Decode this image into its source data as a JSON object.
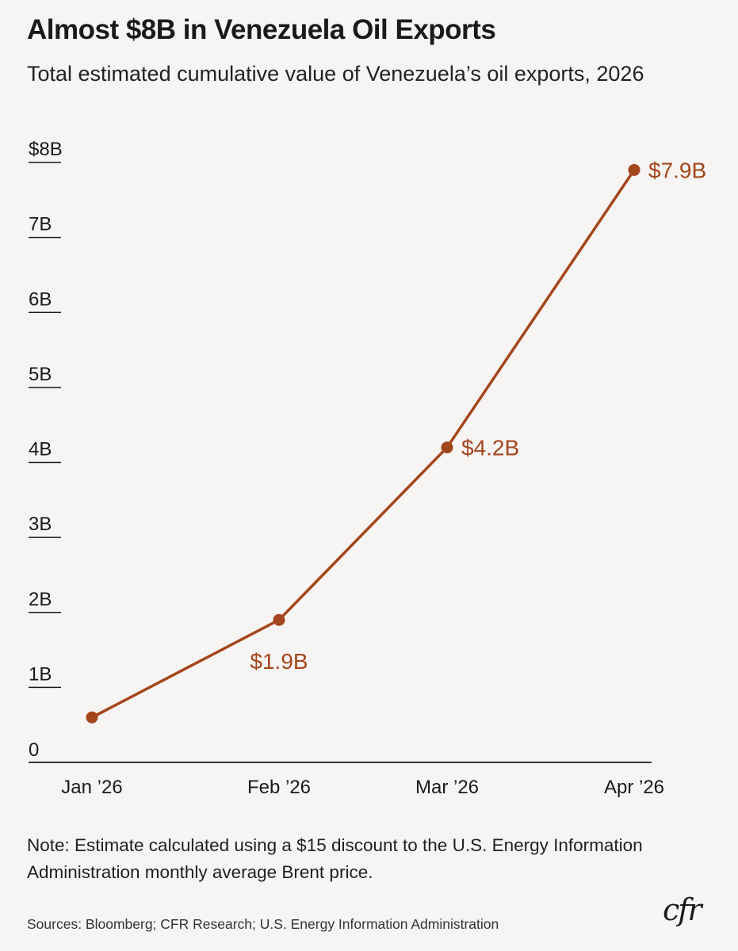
{
  "header": {
    "title": "Almost $8B in Venezuela Oil Exports",
    "subtitle": "Total estimated cumulative value of Venezuela’s oil exports, 2026"
  },
  "chart_data": {
    "type": "line",
    "x": [
      "Jan ’26",
      "Feb ’26",
      "Mar ’26",
      "Apr ’26"
    ],
    "series": [
      {
        "values": [
          0.6,
          1.9,
          4.2,
          7.9
        ],
        "data_labels": [
          "",
          "$1.9B",
          "$4.2B",
          "$7.9B"
        ],
        "color": "#a4461c"
      }
    ],
    "yticks": [
      {
        "value": 0,
        "label": "0"
      },
      {
        "value": 1,
        "label": "1B"
      },
      {
        "value": 2,
        "label": "2B"
      },
      {
        "value": 3,
        "label": "3B"
      },
      {
        "value": 4,
        "label": "4B"
      },
      {
        "value": 5,
        "label": "5B"
      },
      {
        "value": 6,
        "label": "6B"
      },
      {
        "value": 7,
        "label": "7B"
      },
      {
        "value": 8,
        "label": "$8B"
      }
    ],
    "ylim": [
      0,
      8
    ],
    "xlabel": "",
    "ylabel": "",
    "grid": false
  },
  "footer": {
    "note": "Note: Estimate calculated using a $15 discount to the U.S. Energy Information Administration monthly average Brent price.",
    "sources": "Sources: Bloomberg; CFR Research; U.S. Energy Information Administration",
    "logo_text": "cfr"
  },
  "colors": {
    "background": "#f7f5f3",
    "accent": "#a4461c",
    "text": "#1a1a1a"
  }
}
